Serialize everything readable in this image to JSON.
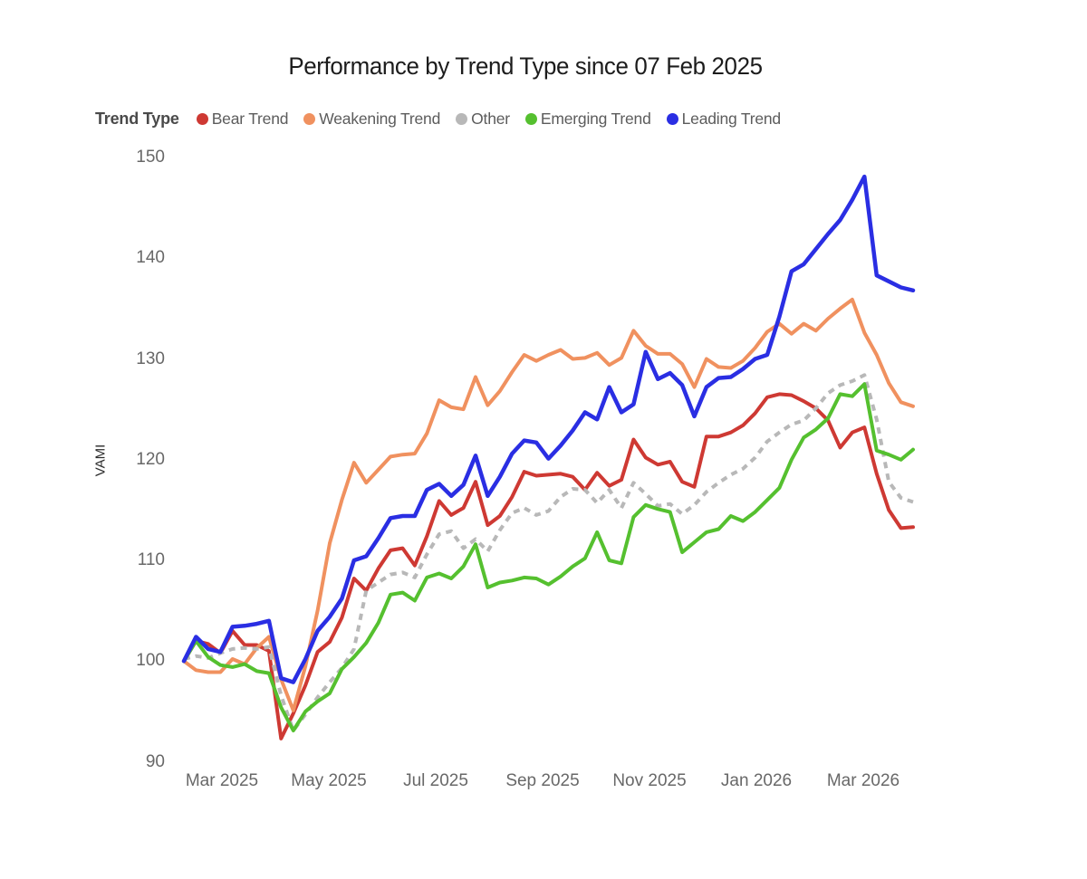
{
  "header": {
    "title": "Performance by Trend Type since 07 Feb 2025"
  },
  "chart_data": {
    "type": "line",
    "title": "Performance by Trend Type since 07 Feb 2025",
    "legend_title": "Trend Type",
    "xlabel": "",
    "ylabel": "VAMI",
    "start_value": 100,
    "start_date_label": "07 Feb 2025",
    "grid": false,
    "legend_position": "top",
    "y_axis": {
      "ticks": [
        150,
        140,
        130,
        120,
        110,
        100,
        90
      ],
      "range": [
        88,
        152
      ]
    },
    "x_axis": {
      "tick_labels": [
        "Mar 2025",
        "May 2025",
        "Jul 2025",
        "Sep 2025",
        "Nov 2025",
        "Jan 2026",
        "Mar 2026"
      ],
      "cadence": "weekly"
    },
    "series": [
      {
        "name": "Bear Trend",
        "color": "#ce3933",
        "dash": null,
        "values": [
          100.0,
          102.0,
          101.7,
          100.8,
          103.0,
          101.6,
          101.6,
          101.0,
          92.3,
          94.8,
          97.6,
          100.9,
          101.9,
          104.3,
          108.2,
          107.0,
          109.2,
          111.0,
          111.2,
          109.5,
          112.4,
          115.9,
          114.5,
          115.2,
          117.8,
          113.5,
          114.4,
          116.3,
          118.8,
          118.4,
          118.5,
          118.6,
          118.3,
          117.0,
          118.7,
          117.4,
          118.0,
          122.0,
          120.2,
          119.5,
          119.8,
          117.8,
          117.3,
          122.3,
          122.3,
          122.7,
          123.4,
          124.6,
          126.2,
          126.5,
          126.4,
          125.8,
          125.1,
          123.9,
          121.2,
          122.7,
          123.2,
          118.6,
          115.0,
          113.2,
          113.3
        ]
      },
      {
        "name": "Weakening Trend",
        "color": "#f0915f",
        "dash": null,
        "values": [
          100.0,
          99.1,
          98.9,
          98.9,
          100.2,
          99.7,
          101.3,
          102.4,
          98.2,
          95.1,
          99.5,
          105.0,
          111.7,
          116.0,
          119.7,
          117.7,
          119.0,
          120.3,
          120.5,
          120.6,
          122.6,
          125.9,
          125.2,
          125.0,
          128.2,
          125.4,
          126.8,
          128.7,
          130.4,
          129.8,
          130.4,
          130.9,
          130.0,
          130.1,
          130.6,
          129.4,
          130.1,
          132.8,
          131.3,
          130.5,
          130.5,
          129.5,
          127.2,
          130.0,
          129.2,
          129.1,
          129.8,
          131.1,
          132.7,
          133.5,
          132.5,
          133.5,
          132.8,
          134.0,
          135.0,
          135.9,
          132.6,
          130.4,
          127.6,
          125.7,
          125.3
        ]
      },
      {
        "name": "Other",
        "color": "#b8b8b8",
        "dash": "7 6",
        "values": [
          100.2,
          100.5,
          100.3,
          100.8,
          101.2,
          101.3,
          101.2,
          101.4,
          96.6,
          93.1,
          94.7,
          96.4,
          97.9,
          99.3,
          101.2,
          107.0,
          107.8,
          108.6,
          108.8,
          108.3,
          110.6,
          112.6,
          112.9,
          111.2,
          112.1,
          110.9,
          113.0,
          114.7,
          115.2,
          114.5,
          114.9,
          116.3,
          117.1,
          117.0,
          115.7,
          117.0,
          115.2,
          117.7,
          116.6,
          115.4,
          115.6,
          114.6,
          115.5,
          116.8,
          117.7,
          118.5,
          119.1,
          120.2,
          121.8,
          122.7,
          123.5,
          123.9,
          125.1,
          126.6,
          127.4,
          127.8,
          128.4,
          124.0,
          117.8,
          116.2,
          115.8
        ]
      },
      {
        "name": "Emerging Trend",
        "color": "#55c02f",
        "dash": null,
        "values": [
          100.0,
          102.0,
          100.4,
          99.6,
          99.4,
          99.7,
          99.0,
          98.8,
          95.4,
          93.1,
          95.0,
          96.0,
          96.8,
          99.2,
          100.4,
          101.8,
          103.8,
          106.6,
          106.8,
          106.0,
          108.3,
          108.7,
          108.2,
          109.4,
          111.6,
          107.3,
          107.8,
          108.0,
          108.3,
          108.2,
          107.6,
          108.4,
          109.4,
          110.2,
          112.8,
          110.0,
          109.7,
          114.3,
          115.5,
          115.1,
          114.8,
          110.8,
          111.8,
          112.8,
          113.1,
          114.4,
          113.9,
          114.8,
          116.0,
          117.2,
          120.0,
          122.2,
          123.0,
          124.1,
          126.5,
          126.3,
          127.5,
          120.9,
          120.5,
          120.0,
          121.0
        ]
      },
      {
        "name": "Leading Trend",
        "color": "#2a2ee3",
        "dash": null,
        "values": [
          100.0,
          102.4,
          101.2,
          100.9,
          103.4,
          103.5,
          103.7,
          104.0,
          98.3,
          97.9,
          100.2,
          103.0,
          104.4,
          106.2,
          110.0,
          110.4,
          112.2,
          114.2,
          114.4,
          114.4,
          117.0,
          117.6,
          116.4,
          117.5,
          120.4,
          116.4,
          118.3,
          120.6,
          121.9,
          121.7,
          120.1,
          121.4,
          122.9,
          124.7,
          124.0,
          127.2,
          124.7,
          125.5,
          130.7,
          128.0,
          128.6,
          127.4,
          124.3,
          127.2,
          128.1,
          128.2,
          129.0,
          130.0,
          130.4,
          134.2,
          138.7,
          139.4,
          140.9,
          142.4,
          143.8,
          145.8,
          148.1,
          138.3,
          137.7,
          137.1,
          136.8
        ]
      }
    ]
  }
}
